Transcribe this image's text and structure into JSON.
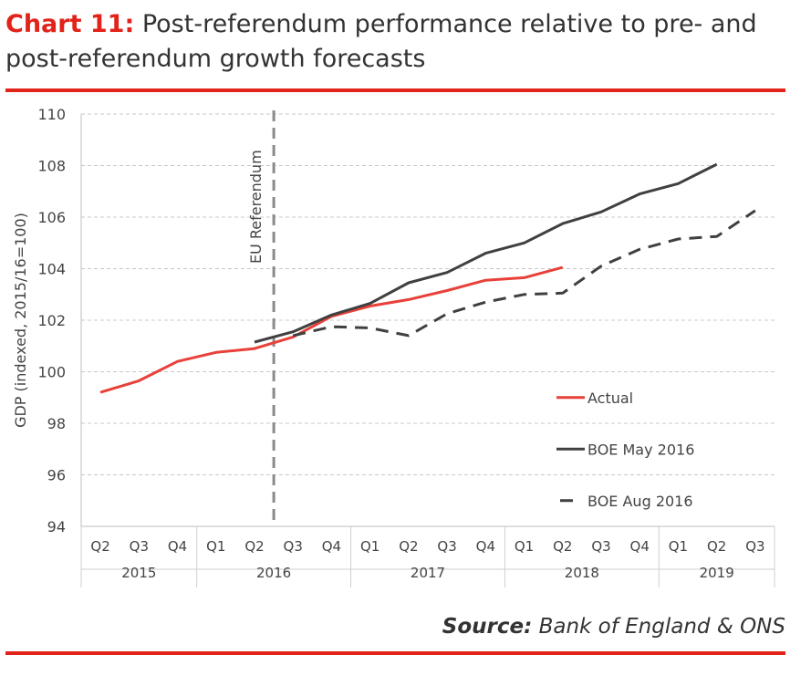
{
  "header": {
    "chart_label": "Chart 11:",
    "title": "Post-referendum performance relative to pre- and post-referendum growth forecasts"
  },
  "footer": {
    "source_label": "Source:",
    "source_text": "Bank of England & ONS"
  },
  "colors": {
    "accent": "#e2231a",
    "actual": "#e8413a",
    "boe": "#404040",
    "referendum_line": "#8a8a8a",
    "grid": "#c8c8c8"
  },
  "chart_data": {
    "type": "line",
    "ylabel": "GDP (indexed, 2015/16=100)",
    "ylim": [
      94,
      110
    ],
    "yticks": [
      94,
      96,
      98,
      100,
      102,
      104,
      106,
      108,
      110
    ],
    "grid": "horizontal dashed",
    "legend_position": "right",
    "x_quarters": [
      "Q2",
      "Q3",
      "Q4",
      "Q1",
      "Q2",
      "Q3",
      "Q4",
      "Q1",
      "Q2",
      "Q3",
      "Q4",
      "Q1",
      "Q2",
      "Q3",
      "Q4",
      "Q1",
      "Q2",
      "Q3"
    ],
    "x_years": [
      {
        "label": "2015",
        "count": 3
      },
      {
        "label": "2016",
        "count": 4
      },
      {
        "label": "2017",
        "count": 4
      },
      {
        "label": "2018",
        "count": 4
      },
      {
        "label": "2019",
        "count": 3
      }
    ],
    "annotation": {
      "label": "EU Referendum",
      "between_index": [
        4,
        5
      ]
    },
    "series": [
      {
        "name": "Actual",
        "style": "solid",
        "color": "#e8413a",
        "start_index": 0,
        "values": [
          99.2,
          99.65,
          100.4,
          100.75,
          100.9,
          101.35,
          102.15,
          102.55,
          102.8,
          103.15,
          103.55,
          103.65,
          104.05
        ]
      },
      {
        "name": "BOE May 2016",
        "style": "solid",
        "color": "#404040",
        "start_index": 4,
        "values": [
          101.15,
          101.55,
          102.2,
          102.65,
          103.45,
          103.85,
          104.6,
          105.0,
          105.75,
          106.2,
          106.9,
          107.3,
          108.05
        ]
      },
      {
        "name": "BOE Aug 2016",
        "style": "dashed",
        "color": "#404040",
        "start_index": 5,
        "values": [
          101.4,
          101.75,
          101.7,
          101.4,
          102.25,
          102.7,
          103.0,
          103.05,
          104.1,
          104.75,
          105.15,
          105.25,
          106.25
        ]
      }
    ]
  }
}
